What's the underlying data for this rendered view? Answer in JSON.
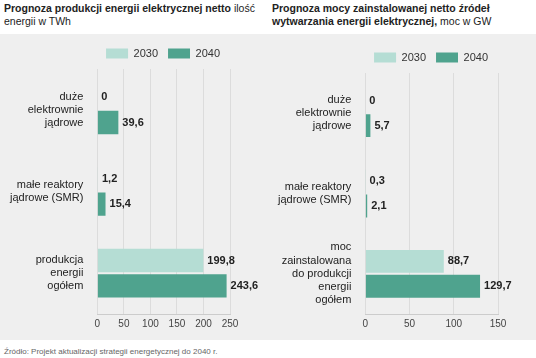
{
  "chart_data": [
    {
      "type": "bar",
      "title": "Prognoza produkcji energii elektrycznej netto",
      "subtitle": "ilość energii w TWh",
      "orientation": "horizontal",
      "categories": [
        "duże elektrownie jądrowe",
        "małe reaktory jądrowe (SMR)",
        "produkcja energii ogółem"
      ],
      "series": [
        {
          "name": "2030",
          "color": "#b5ddd4",
          "values": [
            0,
            1.2,
            199.8
          ],
          "value_labels": [
            "0",
            "1,2",
            "199,8"
          ]
        },
        {
          "name": "2040",
          "color": "#4fa38e",
          "values": [
            39.6,
            15.4,
            243.6
          ],
          "value_labels": [
            "39,6",
            "15,4",
            "243,6"
          ]
        }
      ],
      "xlim": [
        0,
        250
      ],
      "xticks": [
        0,
        50,
        100,
        150,
        200,
        250
      ],
      "grid": true,
      "legend": "top",
      "data_labels": true
    },
    {
      "type": "bar",
      "title": "Prognoza mocy zainstalowanej netto źródeł wytwarzania energii elektrycznej,",
      "subtitle": "moc w GW",
      "orientation": "horizontal",
      "categories": [
        "duże elektrownie jądrowe",
        "małe reaktory jądrowe (SMR)",
        "moc zainstalowana do produkcji energii ogółem"
      ],
      "series": [
        {
          "name": "2030",
          "color": "#b5ddd4",
          "values": [
            0,
            0.3,
            88.7
          ],
          "value_labels": [
            "0",
            "0,3",
            "88,7"
          ]
        },
        {
          "name": "2040",
          "color": "#4fa38e",
          "values": [
            5.7,
            2.1,
            129.7
          ],
          "value_labels": [
            "5,7",
            "2,1",
            "129,7"
          ]
        }
      ],
      "xlim": [
        0,
        150
      ],
      "xticks": [
        0,
        50,
        100,
        150
      ],
      "grid": true,
      "legend": "top",
      "data_labels": true
    }
  ],
  "source": "Źródło: Projekt aktualizacji strategii energetycznej do 2040 r."
}
